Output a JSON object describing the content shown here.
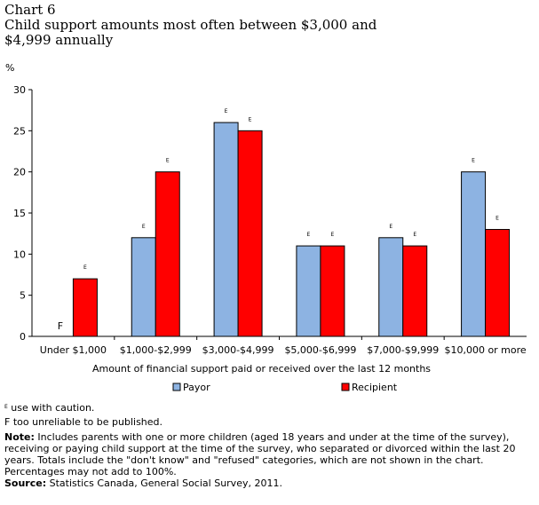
{
  "header": {
    "chart_number": "Chart 6",
    "title_line1": "Child support amounts most often between $3,000 and",
    "title_line2": "$4,999 annually"
  },
  "chart_data": {
    "type": "bar",
    "categories": [
      "Under $1,000",
      "$1,000-$2,999",
      "$3,000-$4,999",
      "$5,000-$6,999",
      "$7,000-$9,999",
      "$10,000 or more"
    ],
    "series": [
      {
        "name": "Payor",
        "values": [
          null,
          12,
          26,
          11,
          12,
          20
        ],
        "flags": [
          "F",
          "E",
          "E",
          "E",
          "E",
          "E"
        ],
        "color": "#8db3e2"
      },
      {
        "name": "Recipient",
        "values": [
          7,
          20,
          25,
          11,
          11,
          13
        ],
        "flags": [
          "E",
          "E",
          "E",
          "E",
          "E",
          "E"
        ],
        "color": "#ff0000"
      }
    ],
    "ylabel": "%",
    "xlabel": "Amount of financial support paid or received over the last 12 months",
    "ylim": [
      0,
      30
    ],
    "yticks": [
      0,
      5,
      10,
      15,
      20,
      25,
      30
    ],
    "grid": false,
    "legend": "bottom"
  },
  "notes": {
    "e_symbol": "E",
    "e_text": " use with caution.",
    "f_text": "F too unreliable to be published.",
    "note_label": "Note:",
    "note_text": " Includes parents with one or more children (aged 18 years and under at the time of the survey), receiving or paying child support at the time of the survey, who separated or divorced within the last 20 years. Totals include the \"don't know\" and \"refused\" categories, which are not shown in the chart. Percentages may not add to 100%.",
    "source_label": "Source:",
    "source_text": " Statistics Canada, General Social Survey, 2011."
  }
}
